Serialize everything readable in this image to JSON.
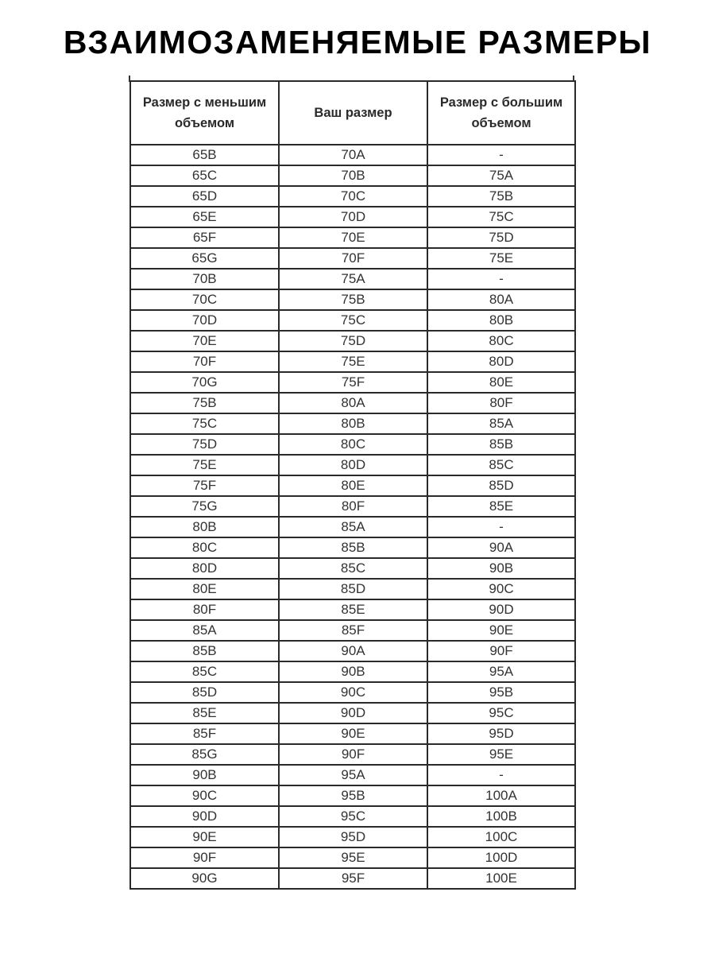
{
  "title": "ВЗАИМОЗАМЕНЯЕМЫЕ РАЗМЕРЫ",
  "table": {
    "headers": [
      "Размер с меньшим объемом",
      "Ваш размер",
      "Размер с большим объемом"
    ],
    "rows": [
      [
        "65B",
        "70A",
        "-"
      ],
      [
        "65C",
        "70B",
        "75A"
      ],
      [
        "65D",
        "70C",
        "75B"
      ],
      [
        "65E",
        "70D",
        "75C"
      ],
      [
        "65F",
        "70E",
        "75D"
      ],
      [
        "65G",
        "70F",
        "75E"
      ],
      [
        "70B",
        "75A",
        "-"
      ],
      [
        "70C",
        "75B",
        "80A"
      ],
      [
        "70D",
        "75C",
        "80B"
      ],
      [
        "70E",
        "75D",
        "80C"
      ],
      [
        "70F",
        "75E",
        "80D"
      ],
      [
        "70G",
        "75F",
        "80E"
      ],
      [
        "75B",
        "80A",
        "80F"
      ],
      [
        "75C",
        "80B",
        "85A"
      ],
      [
        "75D",
        "80C",
        "85B"
      ],
      [
        "75E",
        "80D",
        "85C"
      ],
      [
        "75F",
        "80E",
        "85D"
      ],
      [
        "75G",
        "80F",
        "85E"
      ],
      [
        "80B",
        "85A",
        "-"
      ],
      [
        "80C",
        "85B",
        "90A"
      ],
      [
        "80D",
        "85C",
        "90B"
      ],
      [
        "80E",
        "85D",
        "90C"
      ],
      [
        "80F",
        "85E",
        "90D"
      ],
      [
        "85A",
        "85F",
        "90E"
      ],
      [
        "85B",
        "90A",
        "90F"
      ],
      [
        "85C",
        "90B",
        "95A"
      ],
      [
        "85D",
        "90C",
        "95B"
      ],
      [
        "85E",
        "90D",
        "95C"
      ],
      [
        "85F",
        "90E",
        "95D"
      ],
      [
        "85G",
        "90F",
        "95E"
      ],
      [
        "90B",
        "95A",
        "-"
      ],
      [
        "90C",
        "95B",
        "100A"
      ],
      [
        "90D",
        "95C",
        "100B"
      ],
      [
        "90E",
        "95D",
        "100C"
      ],
      [
        "90F",
        "95E",
        "100D"
      ],
      [
        "90G",
        "95F",
        "100E"
      ]
    ]
  }
}
